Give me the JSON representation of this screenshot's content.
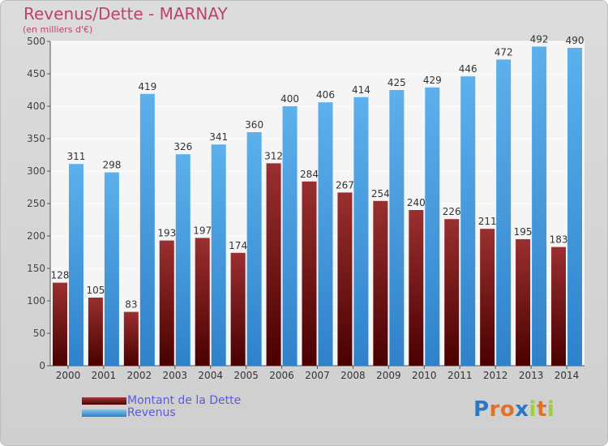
{
  "title": "Revenus/Dette - MARNAY",
  "subtitle": "(en milliers d'€)",
  "chart_data": {
    "type": "bar",
    "categories": [
      "2000",
      "2001",
      "2002",
      "2003",
      "2004",
      "2005",
      "2006",
      "2007",
      "2008",
      "2009",
      "2010",
      "2011",
      "2012",
      "2013",
      "2014"
    ],
    "series": [
      {
        "name": "Montant de la Dette",
        "values": [
          128,
          105,
          83,
          193,
          197,
          174,
          312,
          284,
          267,
          254,
          240,
          226,
          211,
          195,
          183
        ],
        "color": "#7a1c1c"
      },
      {
        "name": "Revenus",
        "values": [
          311,
          298,
          419,
          326,
          341,
          360,
          400,
          406,
          414,
          425,
          429,
          446,
          472,
          492,
          490
        ],
        "color": "#4aa3e6"
      }
    ],
    "yticks": [
      0,
      50,
      100,
      150,
      200,
      250,
      300,
      350,
      400,
      450,
      500
    ],
    "ylim": [
      0,
      500
    ],
    "grid": true,
    "legend_placement": "bottom-left"
  },
  "legend": {
    "debt_label": "Montant de la Dette",
    "revenue_label": "Revenus"
  },
  "logo": {
    "text": "Proxiti"
  }
}
